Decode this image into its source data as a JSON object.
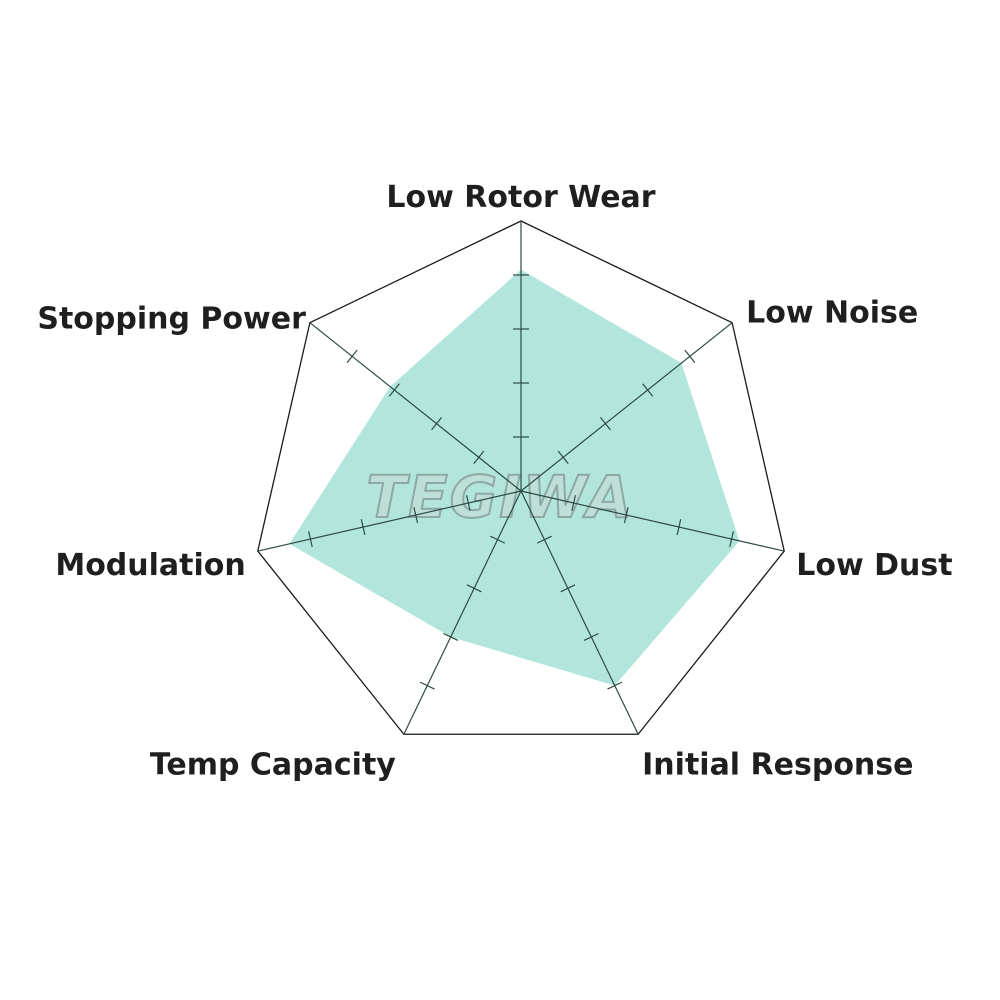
{
  "chart_data": {
    "type": "radar",
    "title": "",
    "axes": [
      "Low Rotor Wear",
      "Low Noise",
      "Low Dust",
      "Initial Response",
      "Temp Capacity",
      "Modulation",
      "Stopping Power"
    ],
    "values": [
      4.1,
      3.8,
      4.15,
      4.0,
      3.0,
      4.4,
      3.1
    ],
    "range": [
      0,
      5
    ],
    "ticks": [
      1,
      2,
      3,
      4
    ],
    "grid": "outer polygon only",
    "colors": {
      "fill": "#b2e6dc",
      "outline": "#1a1a1a",
      "axis": "#2e4a45"
    }
  },
  "watermark": {
    "logo_text": "TEGIWA"
  }
}
